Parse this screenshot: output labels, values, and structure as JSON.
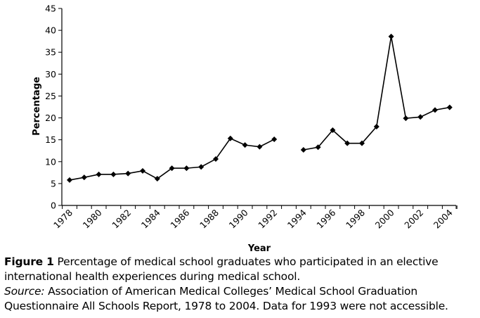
{
  "chart_data": {
    "type": "line",
    "xlabel": "Year",
    "ylabel": "Percentage",
    "xlim": [
      1978,
      2005
    ],
    "ylim": [
      0,
      45
    ],
    "y_ticks": [
      0,
      5,
      10,
      15,
      20,
      25,
      30,
      35,
      40,
      45
    ],
    "x_ticks": [
      1978,
      1980,
      1982,
      1984,
      1986,
      1988,
      1990,
      1992,
      1994,
      1996,
      1998,
      2000,
      2002,
      2004
    ],
    "grid": false,
    "legend": "none",
    "line_color": "#000000",
    "marker": "diamond",
    "series": [
      {
        "x": [
          1978,
          1979,
          1980,
          1981,
          1982,
          1983,
          1984,
          1985,
          1986,
          1987,
          1988,
          1989,
          1990,
          1991,
          1992
        ],
        "y": [
          5.8,
          6.4,
          7.1,
          7.1,
          7.3,
          7.9,
          6.1,
          8.5,
          8.5,
          8.8,
          10.6,
          15.3,
          13.8,
          13.4,
          15.1
        ]
      },
      {
        "x": [
          1994,
          1995,
          1996,
          1997,
          1998,
          1999,
          2000,
          2001,
          2002,
          2003,
          2004
        ],
        "y": [
          12.7,
          13.3,
          17.2,
          14.2,
          14.2,
          18.0,
          38.6,
          19.9,
          20.2,
          21.8,
          22.4
        ]
      }
    ]
  },
  "caption": {
    "figure_label": "Figure 1",
    "figure_text": " Percentage of medical school graduates who participated in an elective international health experiences during medical school.",
    "source_label": "Source:",
    "source_text": " Association of American Medical Colleges’ Medical School Graduation Questionnaire All Schools Report, 1978 to 2004. Data for 1993 were not accessible."
  }
}
